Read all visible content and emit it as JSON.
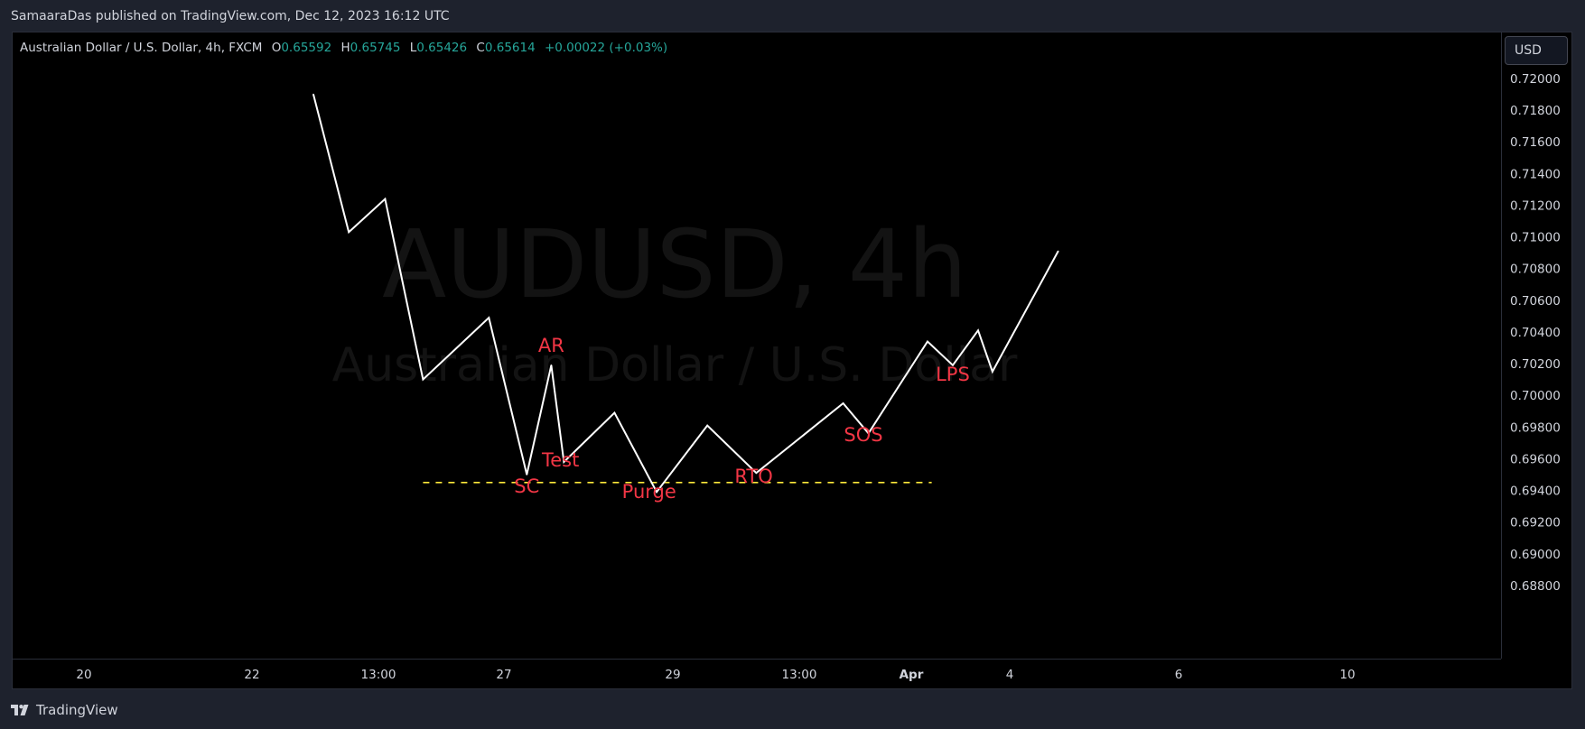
{
  "header": {
    "publish_text": "SamaaraDas published on TradingView.com, Dec 12, 2023 16:12 UTC"
  },
  "legend": {
    "symbol": "Australian Dollar / U.S. Dollar, 4h, FXCM",
    "open_label": "O",
    "open_value": "0.65592",
    "high_label": "H",
    "high_value": "0.65745",
    "low_label": "L",
    "low_value": "0.65426",
    "close_label": "C",
    "close_value": "0.65614",
    "change": "+0.00022 (+0.03%)"
  },
  "watermark": {
    "main": "AUDUSD, 4h",
    "sub": "Australian Dollar / U.S. Dollar"
  },
  "currency_button": "USD",
  "footer": {
    "brand": "TradingView"
  },
  "colors": {
    "background": "#000000",
    "line": "#ffffff",
    "annotation": "#f23645",
    "level": "#ffeb3b",
    "positive": "#26a69a"
  },
  "chart_data": {
    "type": "line",
    "y_ticks": [
      "0.72000",
      "0.71800",
      "0.71600",
      "0.71400",
      "0.71200",
      "0.71000",
      "0.70800",
      "0.70600",
      "0.70400",
      "0.70200",
      "0.70000",
      "0.69800",
      "0.69600",
      "0.69400",
      "0.69200",
      "0.69000",
      "0.68800"
    ],
    "x_ticks": [
      "20",
      "22",
      "13:00",
      "27",
      "29",
      "13:00",
      "Apr",
      "4",
      "6",
      "10"
    ],
    "ylim": [
      0.688,
      0.72
    ],
    "path": [
      {
        "x": 0.0,
        "y": 0.719
      },
      {
        "x": 0.42,
        "y": 0.7103
      },
      {
        "x": 0.85,
        "y": 0.7124
      },
      {
        "x": 1.3,
        "y": 0.701
      },
      {
        "x": 2.08,
        "y": 0.7049
      },
      {
        "x": 2.53,
        "y": 0.695
      },
      {
        "x": 2.82,
        "y": 0.7019
      },
      {
        "x": 2.97,
        "y": 0.6958
      },
      {
        "x": 3.57,
        "y": 0.6989
      },
      {
        "x": 4.07,
        "y": 0.6939
      },
      {
        "x": 4.67,
        "y": 0.6981
      },
      {
        "x": 5.25,
        "y": 0.6951
      },
      {
        "x": 6.28,
        "y": 0.6995
      },
      {
        "x": 6.58,
        "y": 0.6976
      },
      {
        "x": 7.28,
        "y": 0.7034
      },
      {
        "x": 7.58,
        "y": 0.7019
      },
      {
        "x": 7.88,
        "y": 0.7041
      },
      {
        "x": 8.05,
        "y": 0.7015
      },
      {
        "x": 8.83,
        "y": 0.7091
      }
    ],
    "level_line": {
      "y": 0.6945,
      "x_start": 1.3,
      "x_end": 7.33
    },
    "annotations": [
      {
        "text": "AR",
        "x": 2.82,
        "y": 0.70275
      },
      {
        "text": "SC",
        "x": 2.53,
        "y": 0.69387
      },
      {
        "text": "Test",
        "x": 2.93,
        "y": 0.6955
      },
      {
        "text": "Purge",
        "x": 3.98,
        "y": 0.69352
      },
      {
        "text": "RTO",
        "x": 5.22,
        "y": 0.69449
      },
      {
        "text": "SOS",
        "x": 6.52,
        "y": 0.69711
      },
      {
        "text": "LPS",
        "x": 7.58,
        "y": 0.70092
      }
    ]
  }
}
